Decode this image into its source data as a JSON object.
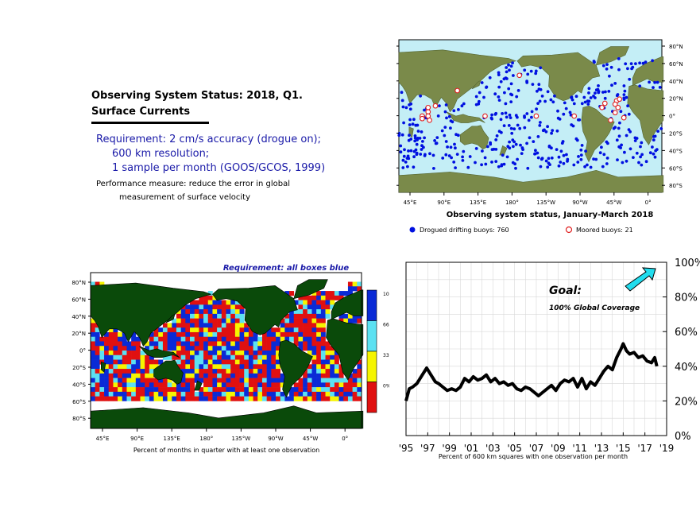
{
  "header": {
    "title_line1": "Observing System Status:  2018, Q1.",
    "title_line2": "Surface Currents",
    "requirement_lines": [
      "Requirement: 2 cm/s accuracy (drogue on);",
      "600 km resolution;",
      "1 sample per month (GOOS/GCOS, 1999)"
    ],
    "performance_lines": [
      "Performance measure: reduce the error in global",
      "measurement of surface velocity"
    ]
  },
  "buoy_map": {
    "caption": "Observing system status, January-March 2018",
    "lat_labels": [
      "80°N",
      "60°N",
      "40°N",
      "20°N",
      "0°",
      "20°S",
      "40°S",
      "60°S",
      "80°S"
    ],
    "lon_labels": [
      "45°E",
      "90°E",
      "135°E",
      "180°",
      "135°W",
      "90°W",
      "45°W",
      "0°"
    ],
    "legend": [
      {
        "label": "Drogued drifting buoys: 760",
        "marker": "filled-circle",
        "color": "#0000e0"
      },
      {
        "label": "Moored buoys: 21",
        "marker": "open-circle",
        "color": "#e02020"
      }
    ],
    "colors": {
      "ocean": "#c4eef6",
      "land": "#7a8a4a",
      "drifter": "#0010e0",
      "moored": "#e02020"
    }
  },
  "coverage_map": {
    "title": "Requirement: all boxes blue",
    "caption": "Percent of months in quarter with at least one observation",
    "lat_labels": [
      "80°N",
      "60°N",
      "40°N",
      "20°N",
      "0°",
      "20°S",
      "40°S",
      "60°S",
      "80°S"
    ],
    "lon_labels": [
      "45°E",
      "90°E",
      "135°E",
      "180°",
      "135°W",
      "90°W",
      "45°W",
      "0°"
    ],
    "colorbar": [
      {
        "label": "100%",
        "color": "#0a2ad6"
      },
      {
        "label": "66%",
        "color": "#5ce1f2"
      },
      {
        "label": "33%",
        "color": "#f5f500"
      },
      {
        "label": "0%",
        "color": "#e01010"
      }
    ],
    "colors": {
      "land": "#0a4a0a",
      "ice": "#ffffff"
    }
  },
  "chart_data": {
    "type": "line",
    "title": "",
    "xlabel": "Percent of 600 km squares with one observation per month",
    "ylabel": "",
    "x_tick_labels": [
      "'95",
      "'97",
      "'99",
      "'01",
      "'03",
      "'05",
      "'07",
      "'09",
      "'11",
      "'13",
      "'15",
      "'17",
      "'19"
    ],
    "y_tick_labels": [
      "0%",
      "20%",
      "40%",
      "60%",
      "80%",
      "100%"
    ],
    "xlim": [
      1995,
      2019
    ],
    "ylim": [
      0,
      100
    ],
    "grid": true,
    "annotation_title": "Goal:",
    "annotation_text": "100% Global Coverage",
    "arrow_color": "#22ddee",
    "series": [
      {
        "x": [
          1995.0,
          1995.3,
          1995.6,
          1996.0,
          1996.5,
          1996.9,
          1997.3,
          1997.7,
          1998.0,
          1998.4,
          1998.8,
          1999.2,
          1999.6,
          2000.0,
          2000.4,
          2000.8,
          2001.2,
          2001.6,
          2002.0,
          2002.4,
          2002.8,
          2003.2,
          2003.6,
          2004.0,
          2004.4,
          2004.8,
          2005.2,
          2005.6,
          2006.0,
          2006.4,
          2006.8,
          2007.2,
          2007.6,
          2008.0,
          2008.4,
          2008.8,
          2009.2,
          2009.6,
          2010.0,
          2010.4,
          2010.8,
          2011.2,
          2011.6,
          2012.0,
          2012.4,
          2012.8,
          2013.2,
          2013.6,
          2014.0,
          2014.4,
          2014.8,
          2015.0,
          2015.3,
          2015.6,
          2016.0,
          2016.4,
          2016.8,
          2017.2,
          2017.6,
          2017.9,
          2018.1
        ],
        "y": [
          20,
          27,
          28,
          30,
          35,
          39,
          35,
          31,
          30,
          28,
          26,
          27,
          26,
          28,
          33,
          31,
          34,
          32,
          33,
          35,
          31,
          33,
          30,
          31,
          29,
          30,
          27,
          26,
          28,
          27,
          25,
          23,
          25,
          27,
          29,
          26,
          30,
          32,
          31,
          33,
          28,
          33,
          27,
          31,
          29,
          33,
          37,
          40,
          38,
          45,
          50,
          53,
          49,
          47,
          48,
          45,
          46,
          43,
          42,
          45,
          40
        ]
      }
    ]
  }
}
